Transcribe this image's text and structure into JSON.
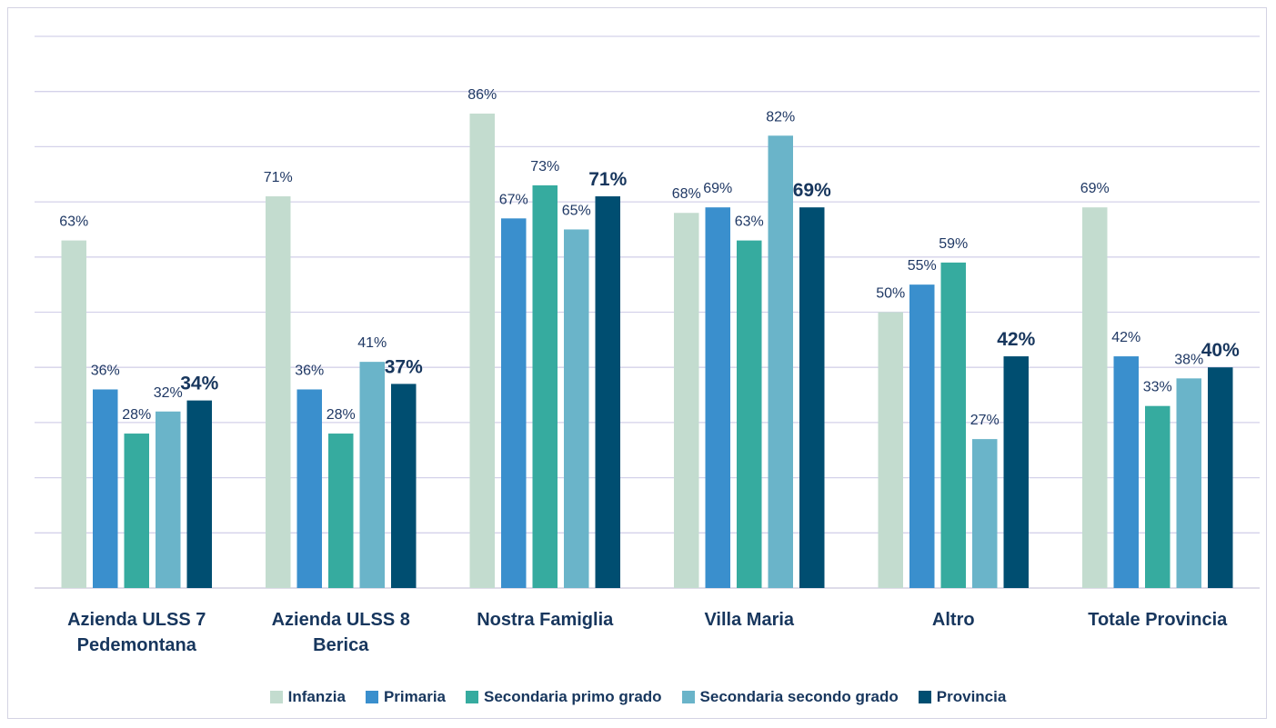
{
  "chart_data": {
    "type": "bar",
    "categories": [
      "Azienda ULSS 7 Pedemontana",
      "Azienda ULSS 8 Berica",
      "Nostra Famiglia",
      "Villa Maria",
      "Altro",
      "Totale Provincia"
    ],
    "series": [
      {
        "name": "Infanzia",
        "color": "#c3dccf",
        "values": [
          63,
          71,
          86,
          68,
          50,
          69
        ],
        "value_labels": [
          "63%",
          "71%",
          "86%",
          "68%",
          "50%",
          "69%"
        ]
      },
      {
        "name": "Primaria",
        "color": "#3a8fcd",
        "values": [
          36,
          36,
          67,
          69,
          55,
          42
        ],
        "value_labels": [
          "36%",
          "36%",
          "67%",
          "69%",
          "55%",
          "42%"
        ]
      },
      {
        "name": "Secondaria primo grado",
        "color": "#36ab9f",
        "values": [
          28,
          28,
          73,
          63,
          59,
          33
        ],
        "value_labels": [
          "28%",
          "28%",
          "73%",
          "63%",
          "59%",
          "33%"
        ]
      },
      {
        "name": "Secondaria secondo grado",
        "color": "#6ab4c9",
        "values": [
          32,
          41,
          65,
          82,
          27,
          38
        ],
        "value_labels": [
          "32%",
          "41%",
          "65%",
          "82%",
          "27%",
          "38%"
        ]
      },
      {
        "name": "Provincia",
        "color": "#004e71",
        "values": [
          34,
          37,
          71,
          69,
          42,
          40
        ],
        "value_labels": [
          "34%",
          "37%",
          "71%",
          "69%",
          "42%",
          "40%"
        ]
      }
    ],
    "ylim": [
      0,
      100
    ],
    "yticks": [
      0,
      10,
      20,
      30,
      40,
      50,
      60,
      70,
      80,
      90,
      100
    ],
    "grid": true,
    "legend": "bottom"
  }
}
